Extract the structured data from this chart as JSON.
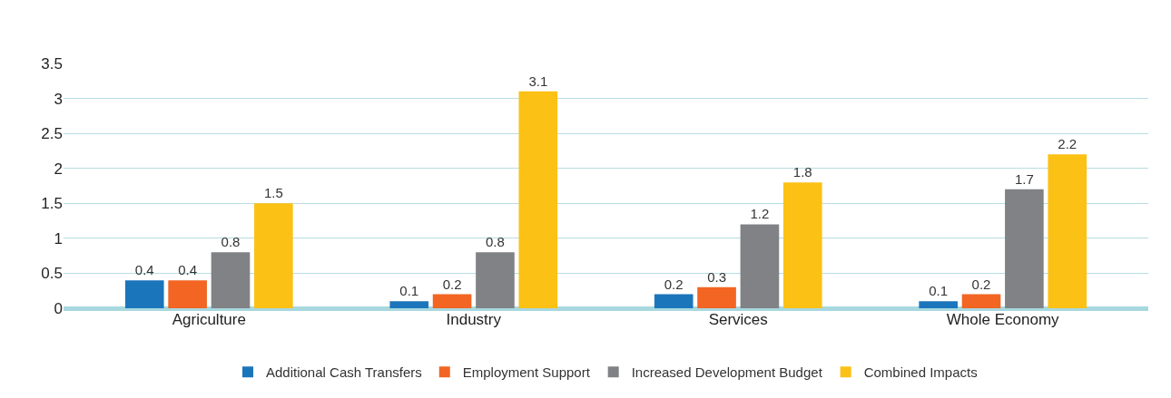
{
  "chart_data": {
    "type": "bar",
    "categories": [
      "Agriculture",
      "Industry",
      "Services",
      "Whole Economy"
    ],
    "series": [
      {
        "name": "Additional Cash Transfers",
        "color": "#1b75bb",
        "values": [
          0.4,
          0.1,
          0.2,
          0.1
        ],
        "value_labels": [
          "0.4",
          "0.1",
          "0.2",
          "0.1"
        ]
      },
      {
        "name": "Employment Support",
        "color": "#f26522",
        "values": [
          0.4,
          0.2,
          0.3,
          0.2
        ],
        "value_labels": [
          "0.4",
          "0.2",
          "0.3",
          "0.2"
        ]
      },
      {
        "name": "Increased Development Budget",
        "color": "#808285",
        "values": [
          0.8,
          0.8,
          1.2,
          1.7
        ],
        "value_labels": [
          "0.8",
          "0.8",
          "1.2",
          "1.7"
        ]
      },
      {
        "name": "Combined Impacts",
        "color": "#fbc114",
        "values": [
          1.5,
          3.1,
          1.8,
          2.2
        ],
        "value_labels": [
          "1.5",
          "3.1",
          "1.8",
          "2.2"
        ]
      }
    ],
    "ylim": [
      0,
      3.5
    ],
    "yticks": [
      0,
      0.5,
      1,
      1.5,
      2,
      2.5,
      3,
      3.5
    ],
    "grid": "y",
    "legend": "bottom"
  }
}
